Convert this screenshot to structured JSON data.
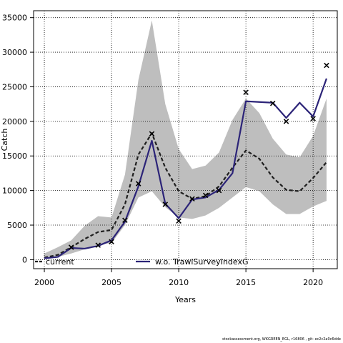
{
  "chart_data": {
    "type": "line",
    "xlabel": "Years",
    "ylabel": "Catch",
    "xlim": [
      1999.2,
      2021.8
    ],
    "ylim": [
      -1300,
      36000
    ],
    "xticks": [
      2000,
      2005,
      2010,
      2015,
      2020
    ],
    "yticks": [
      0,
      5000,
      10000,
      15000,
      20000,
      25000,
      30000,
      35000
    ],
    "grid": true,
    "legend_position": "bottom",
    "x": [
      2000,
      2001,
      2002,
      2003,
      2004,
      2005,
      2006,
      2007,
      2008,
      2009,
      2010,
      2011,
      2012,
      2013,
      2014,
      2015,
      2016,
      2017,
      2018,
      2019,
      2020,
      2021
    ],
    "band": {
      "upper": [
        900,
        1800,
        2800,
        4900,
        6300,
        6100,
        12300,
        26000,
        34600,
        22500,
        16000,
        13100,
        13600,
        15500,
        20200,
        23300,
        21200,
        17500,
        15200,
        14800,
        17900,
        23300
      ],
      "lower": [
        100,
        400,
        900,
        1500,
        2200,
        2400,
        5000,
        9000,
        9900,
        7600,
        6100,
        5900,
        6400,
        7500,
        9000,
        10500,
        9900,
        8000,
        6600,
        6600,
        7700,
        8500
      ]
    },
    "series": [
      {
        "name": "current",
        "color": "#1f1f1f",
        "dash": true,
        "values": [
          300,
          700,
          1800,
          3000,
          4000,
          4300,
          8000,
          15200,
          18300,
          13300,
          9900,
          8800,
          9200,
          10600,
          13300,
          15800,
          14600,
          11900,
          10100,
          9900,
          11800,
          14100
        ]
      },
      {
        "name": "w.o. TrawlSurveyIndexG",
        "color": "#2c2478",
        "dash": false,
        "values": [
          200,
          400,
          1700,
          1600,
          2000,
          2800,
          5500,
          10600,
          17200,
          8100,
          6000,
          8700,
          9000,
          10100,
          12500,
          22900,
          22800,
          22700,
          20500,
          22700,
          20700,
          26200
        ]
      }
    ],
    "observed": {
      "x": [
        2002,
        2004,
        2005,
        2006,
        2007,
        2008,
        2009,
        2010,
        2011,
        2012,
        2013,
        2015,
        2017,
        2018,
        2020,
        2021
      ],
      "values": [
        1800,
        2100,
        2600,
        5700,
        11000,
        18200,
        8000,
        5600,
        8800,
        9300,
        10000,
        24200,
        22600,
        20000,
        20400,
        28100
      ]
    },
    "colors": {
      "band": "#bebebe",
      "observed": "#000000",
      "grid": "#000000"
    }
  },
  "footer": "stockassessment.org, WKGREEN_EGL, r16806 , git: ec2c2a0c6dde"
}
